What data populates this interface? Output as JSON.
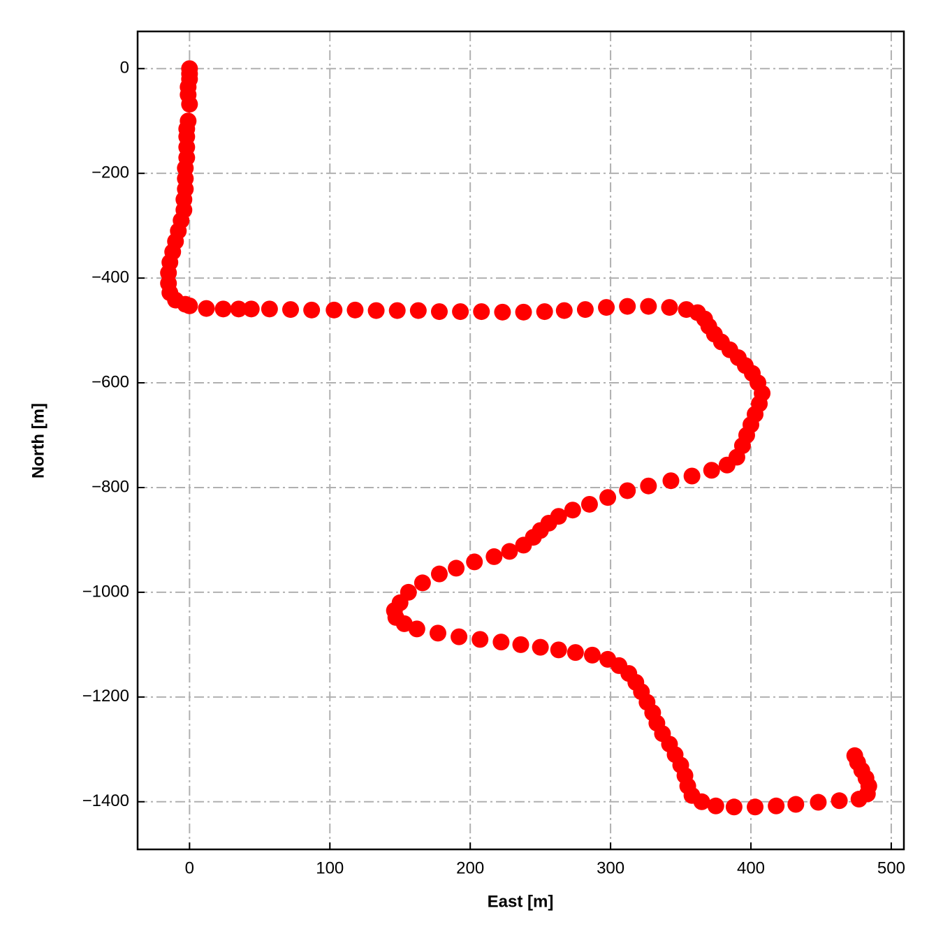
{
  "chart_data": {
    "type": "scatter",
    "x_label": "East [m]",
    "y_label": "North [m]",
    "color": "#ff0000",
    "grid": true,
    "xlim": [
      -37,
      509
    ],
    "ylim": [
      -1491,
      71
    ],
    "xticks": [
      0,
      100,
      200,
      300,
      400,
      500
    ],
    "yticks": [
      0,
      {
        "value": -200,
        "label": "−200"
      },
      {
        "value": -400,
        "label": "−400"
      },
      {
        "value": -600,
        "label": "−600"
      },
      {
        "value": -800,
        "label": "−800"
      },
      {
        "value": -1000,
        "label": "−1000"
      },
      {
        "value": -1200,
        "label": "−1200"
      },
      {
        "value": -1400,
        "label": "−1400"
      }
    ],
    "x": [
      0,
      0,
      0,
      -1,
      -1,
      0,
      -1,
      -2,
      -2,
      -2,
      -2,
      -3,
      -3,
      -3,
      -4,
      -4,
      -6,
      -8,
      -10,
      -12,
      -14,
      -15,
      -15,
      -14,
      -10,
      -3,
      0,
      12,
      24,
      35,
      44,
      57,
      72,
      87,
      103,
      118,
      133,
      148,
      163,
      178,
      193,
      208,
      223,
      238,
      253,
      267,
      282,
      297,
      312,
      327,
      342,
      354,
      362,
      367,
      370,
      374,
      379,
      385,
      391,
      396,
      401,
      405,
      408,
      406,
      403,
      400,
      397,
      394,
      390,
      383,
      372,
      358,
      343,
      327,
      312,
      298,
      285,
      273,
      263,
      256,
      250,
      245,
      238,
      228,
      217,
      203,
      190,
      178,
      166,
      156,
      150,
      146,
      147,
      153,
      162,
      177,
      192,
      207,
      222,
      236,
      250,
      263,
      275,
      287,
      298,
      306,
      313,
      318,
      322,
      326,
      330,
      333,
      337,
      342,
      346,
      350,
      353,
      355,
      358,
      365,
      375,
      388,
      403,
      418,
      432,
      448,
      463,
      477,
      483,
      484,
      482,
      479,
      476,
      474
    ],
    "values": [
      0,
      -10,
      -20,
      -35,
      -50,
      -68,
      -100,
      -115,
      -130,
      -150,
      -170,
      -190,
      -210,
      -230,
      -250,
      -270,
      -290,
      -310,
      -330,
      -350,
      -370,
      -390,
      -410,
      -428,
      -442,
      -450,
      -453,
      -458,
      -459,
      -459,
      -459,
      -459,
      -460,
      -461,
      -461,
      -461,
      -462,
      -462,
      -462,
      -464,
      -464,
      -464,
      -465,
      -465,
      -464,
      -462,
      -460,
      -456,
      -454,
      -454,
      -456,
      -460,
      -466,
      -478,
      -492,
      -507,
      -522,
      -537,
      -552,
      -567,
      -582,
      -600,
      -620,
      -640,
      -660,
      -680,
      -700,
      -720,
      -742,
      -757,
      -767,
      -778,
      -787,
      -797,
      -806,
      -819,
      -832,
      -843,
      -855,
      -868,
      -882,
      -895,
      -910,
      -922,
      -932,
      -942,
      -954,
      -965,
      -982,
      -1000,
      -1020,
      -1035,
      -1048,
      -1060,
      -1070,
      -1078,
      -1085,
      -1090,
      -1095,
      -1100,
      -1105,
      -1110,
      -1115,
      -1120,
      -1128,
      -1140,
      -1155,
      -1172,
      -1190,
      -1210,
      -1230,
      -1250,
      -1270,
      -1290,
      -1310,
      -1330,
      -1350,
      -1370,
      -1388,
      -1400,
      -1408,
      -1410,
      -1410,
      -1408,
      -1405,
      -1401,
      -1398,
      -1395,
      -1385,
      -1370,
      -1355,
      -1340,
      -1325,
      -1312
    ]
  }
}
